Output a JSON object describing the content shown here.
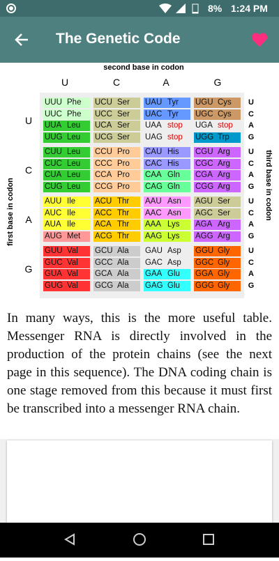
{
  "status_bar": {
    "battery": "8%",
    "time": "1:24 PM"
  },
  "app_bar": {
    "title": "The Genetic Code"
  },
  "codon_table": {
    "second_base_label": "second base in codon",
    "first_base_label": "first base in codon",
    "third_base_label": "third base in codon",
    "second_bases": [
      "U",
      "C",
      "A",
      "G"
    ],
    "first_bases": [
      "U",
      "C",
      "A",
      "G"
    ],
    "third_bases": [
      "U",
      "C",
      "A",
      "G"
    ],
    "rows": [
      [
        [
          {
            "codon": "UUU",
            "aa": "Phe",
            "color": "#ccffcc"
          },
          {
            "codon": "UUC",
            "aa": "Phe",
            "color": "#ccffcc"
          },
          {
            "codon": "UUA",
            "aa": "Leu",
            "color": "#33cc33"
          },
          {
            "codon": "UUG",
            "aa": "Leu",
            "color": "#33cc33"
          }
        ],
        [
          {
            "codon": "UCU",
            "aa": "Ser",
            "color": "#cccc99"
          },
          {
            "codon": "UCC",
            "aa": "Ser",
            "color": "#cccc99"
          },
          {
            "codon": "UCA",
            "aa": "Ser",
            "color": "#cccc99"
          },
          {
            "codon": "UCG",
            "aa": "Ser",
            "color": "#cccc99"
          }
        ],
        [
          {
            "codon": "UAU",
            "aa": "Tyr",
            "color": "#6699ff"
          },
          {
            "codon": "UAC",
            "aa": "Tyr",
            "color": "#6699ff"
          },
          {
            "codon": "UAA",
            "aa": "stop",
            "color": "#eeeeee",
            "text_color": "#dd0000"
          },
          {
            "codon": "UAG",
            "aa": "stop",
            "color": "#eeeeee",
            "text_color": "#dd0000"
          }
        ],
        [
          {
            "codon": "UGU",
            "aa": "Cys",
            "color": "#cc9966"
          },
          {
            "codon": "UGC",
            "aa": "Cys",
            "color": "#cc9966"
          },
          {
            "codon": "UGA",
            "aa": "stop",
            "color": "#eeeeee",
            "text_color": "#dd0000"
          },
          {
            "codon": "UGG",
            "aa": "Trp",
            "color": "#0099cc"
          }
        ]
      ],
      [
        [
          {
            "codon": "CUU",
            "aa": "Leu",
            "color": "#33cc33"
          },
          {
            "codon": "CUC",
            "aa": "Leu",
            "color": "#33cc33"
          },
          {
            "codon": "CUA",
            "aa": "Leu",
            "color": "#33cc33"
          },
          {
            "codon": "CUG",
            "aa": "Leu",
            "color": "#33cc33"
          }
        ],
        [
          {
            "codon": "CCU",
            "aa": "Pro",
            "color": "#ffcc99"
          },
          {
            "codon": "CCC",
            "aa": "Pro",
            "color": "#ffcc99"
          },
          {
            "codon": "CCA",
            "aa": "Pro",
            "color": "#ffcc99"
          },
          {
            "codon": "CCG",
            "aa": "Pro",
            "color": "#ffcc99"
          }
        ],
        [
          {
            "codon": "CAU",
            "aa": "His",
            "color": "#9999ff"
          },
          {
            "codon": "CAC",
            "aa": "His",
            "color": "#9999ff"
          },
          {
            "codon": "CAA",
            "aa": "Gln",
            "color": "#66ff99"
          },
          {
            "codon": "CAG",
            "aa": "Gln",
            "color": "#66ff99"
          }
        ],
        [
          {
            "codon": "CGU",
            "aa": "Arg",
            "color": "#cc66ff"
          },
          {
            "codon": "CGC",
            "aa": "Arg",
            "color": "#cc66ff"
          },
          {
            "codon": "CGA",
            "aa": "Arg",
            "color": "#cc66ff"
          },
          {
            "codon": "CGG",
            "aa": "Arg",
            "color": "#cc66ff"
          }
        ]
      ],
      [
        [
          {
            "codon": "AUU",
            "aa": "Ile",
            "color": "#ffff33"
          },
          {
            "codon": "AUC",
            "aa": "Ile",
            "color": "#ffff33"
          },
          {
            "codon": "AUA",
            "aa": "Ile",
            "color": "#ffff33"
          },
          {
            "codon": "AUG",
            "aa": "Met",
            "color": "#ff9999"
          }
        ],
        [
          {
            "codon": "ACU",
            "aa": "Thr",
            "color": "#ffcc00"
          },
          {
            "codon": "ACC",
            "aa": "Thr",
            "color": "#ffcc00"
          },
          {
            "codon": "ACA",
            "aa": "Thr",
            "color": "#ffcc00"
          },
          {
            "codon": "ACG",
            "aa": "Thr",
            "color": "#ffcc00"
          }
        ],
        [
          {
            "codon": "AAU",
            "aa": "Asn",
            "color": "#ff99ff"
          },
          {
            "codon": "AAC",
            "aa": "Asn",
            "color": "#ff99ff"
          },
          {
            "codon": "AAA",
            "aa": "Lys",
            "color": "#ccff33"
          },
          {
            "codon": "AAG",
            "aa": "Lys",
            "color": "#ccff33"
          }
        ],
        [
          {
            "codon": "AGU",
            "aa": "Ser",
            "color": "#cccc99"
          },
          {
            "codon": "AGC",
            "aa": "Ser",
            "color": "#cccc99"
          },
          {
            "codon": "AGA",
            "aa": "Arg",
            "color": "#cc66ff"
          },
          {
            "codon": "AGG",
            "aa": "Arg",
            "color": "#cc66ff"
          }
        ]
      ],
      [
        [
          {
            "codon": "GUU",
            "aa": "Val",
            "color": "#ff3333"
          },
          {
            "codon": "GUC",
            "aa": "Val",
            "color": "#ff3333"
          },
          {
            "codon": "GUA",
            "aa": "Val",
            "color": "#ff3333"
          },
          {
            "codon": "GUG",
            "aa": "Val",
            "color": "#ff3333"
          }
        ],
        [
          {
            "codon": "GCU",
            "aa": "Ala",
            "color": "#cccccc"
          },
          {
            "codon": "GCC",
            "aa": "Ala",
            "color": "#cccccc"
          },
          {
            "codon": "GCA",
            "aa": "Ala",
            "color": "#cccccc"
          },
          {
            "codon": "GCG",
            "aa": "Ala",
            "color": "#cccccc"
          }
        ],
        [
          {
            "codon": "GAU",
            "aa": "Asp",
            "color": "#eeeeee"
          },
          {
            "codon": "GAC",
            "aa": "Asp",
            "color": "#eeeeee"
          },
          {
            "codon": "GAA",
            "aa": "Glu",
            "color": "#33ffff"
          },
          {
            "codon": "GAG",
            "aa": "Glu",
            "color": "#33ffff"
          }
        ],
        [
          {
            "codon": "GGU",
            "aa": "Gly",
            "color": "#ff6600"
          },
          {
            "codon": "GGC",
            "aa": "Gly",
            "color": "#ff6600"
          },
          {
            "codon": "GGA",
            "aa": "Gly",
            "color": "#ff6600"
          },
          {
            "codon": "GGG",
            "aa": "Gly",
            "color": "#ff6600"
          }
        ]
      ]
    ]
  },
  "paragraph": "In many ways, this is the more useful table. Messenger RNA is directly involved in the production of the protein chains (see the next page in this sequence). The DNA coding chain is one stage removed from this because it must first be transcribed into a messenger RNA chain."
}
